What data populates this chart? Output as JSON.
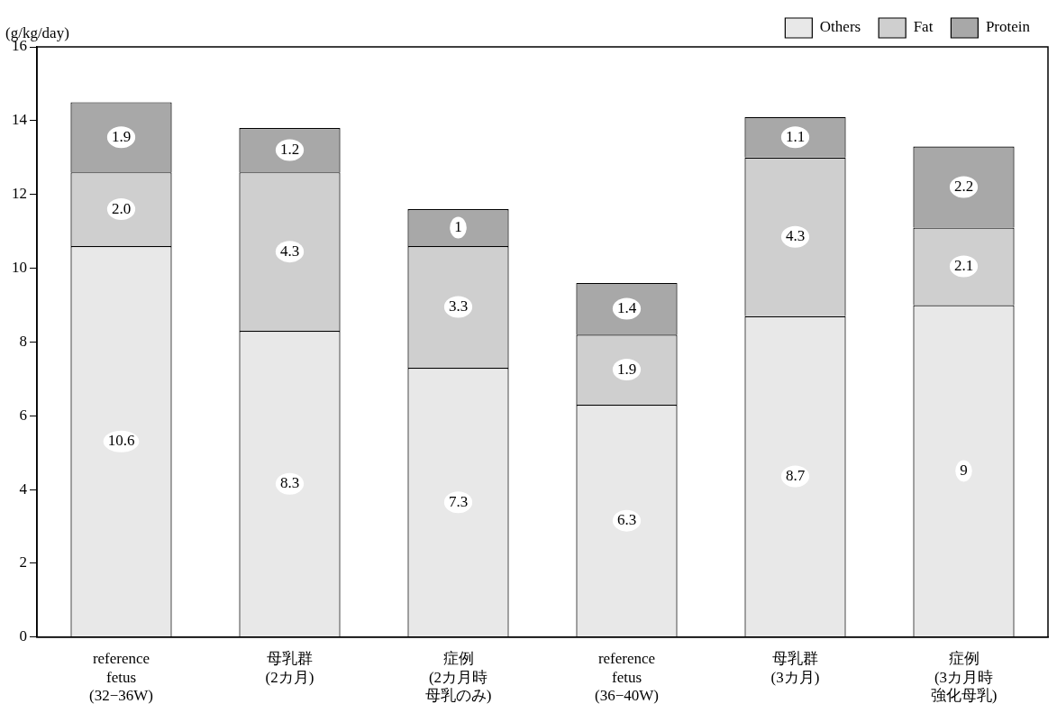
{
  "chart_data": {
    "type": "bar",
    "stacked": true,
    "ylabel": "(g/kg/day)",
    "categories": [
      "reference\nfetus\n(32−36W)",
      "母乳群(2カ月)",
      "症例(2カ月時母乳のみ)",
      "reference\nfetus\n(36−40W)",
      "母乳群(3カ月)",
      "症例(3カ月時強化母乳)"
    ],
    "series": [
      {
        "name": "Others",
        "color": "#e8e8e8",
        "values": [
          10.6,
          8.3,
          7.3,
          6.3,
          8.7,
          9
        ],
        "value_labels": [
          "10.6",
          "8.3",
          "7.3",
          "6.3",
          "8.7",
          "9"
        ]
      },
      {
        "name": "Fat",
        "color": "#cfcfcf",
        "values": [
          2.0,
          4.3,
          3.3,
          1.9,
          4.3,
          2.1
        ],
        "value_labels": [
          "2.0",
          "4.3",
          "3.3",
          "1.9",
          "4.3",
          "2.1"
        ]
      },
      {
        "name": "Protein",
        "color": "#a8a8a8",
        "values": [
          1.9,
          1.2,
          1,
          1.4,
          1.1,
          2.2
        ],
        "value_labels": [
          "1.9",
          "1.2",
          "1",
          "1.4",
          "1.1",
          "2.2"
        ]
      }
    ],
    "ylim": [
      0,
      16
    ],
    "yticks": [
      0,
      2,
      4,
      6,
      8,
      10,
      12,
      14,
      16
    ],
    "grid": false,
    "legend": "top right"
  }
}
